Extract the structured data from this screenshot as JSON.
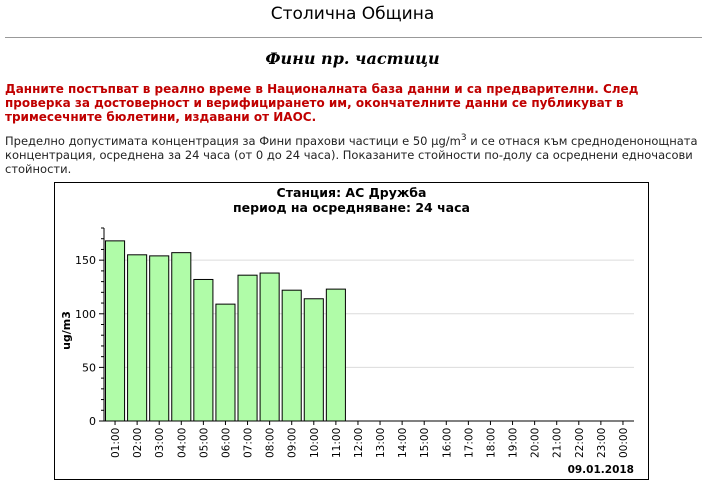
{
  "header": {
    "title": "Столична Община"
  },
  "section": {
    "title": "Фини пр. частици"
  },
  "notice": "Данните постъпват в реално време в Националната база данни и са предварителни. След проверка за достоверност и верифицирането им, окончателните данни се публикуват в тримесечните бюлетини, издавани от ИАОС.",
  "info": {
    "part1": "Пределно допустимата концентрация за Фини прахови частици е 50 μg/m",
    "sup": "3",
    "part2": " и се отнася към средноденонощната концентрация, осреднена за 24 часа (от 0 до 24 часа). Показаните стойности по-долу са осреднени едночасови стойности."
  },
  "chart": {
    "station": "Станция: АС Дружба",
    "period": "период на осредняване: 24 часа"
  },
  "colors": {
    "bar_fill": "#b0fca8",
    "notice": "#c00000"
  },
  "chart_data": {
    "type": "bar",
    "title": "Станция: АС Дружба",
    "subtitle": "период на осредняване: 24 часа",
    "ylabel": "ug/m3",
    "xlabel": "",
    "date_label": "09.01.2018",
    "ylim": [
      0,
      180
    ],
    "yticks": [
      0,
      50,
      100,
      150
    ],
    "grid": true,
    "categories": [
      "01:00",
      "02:00",
      "03:00",
      "04:00",
      "05:00",
      "06:00",
      "07:00",
      "08:00",
      "09:00",
      "10:00",
      "11:00",
      "12:00",
      "13:00",
      "14:00",
      "15:00",
      "16:00",
      "17:00",
      "18:00",
      "19:00",
      "20:00",
      "21:00",
      "22:00",
      "23:00",
      "00:00"
    ],
    "values": [
      168,
      155,
      154,
      157,
      132,
      109,
      136,
      138,
      122,
      114,
      123,
      null,
      null,
      null,
      null,
      null,
      null,
      null,
      null,
      null,
      null,
      null,
      null,
      null
    ]
  }
}
